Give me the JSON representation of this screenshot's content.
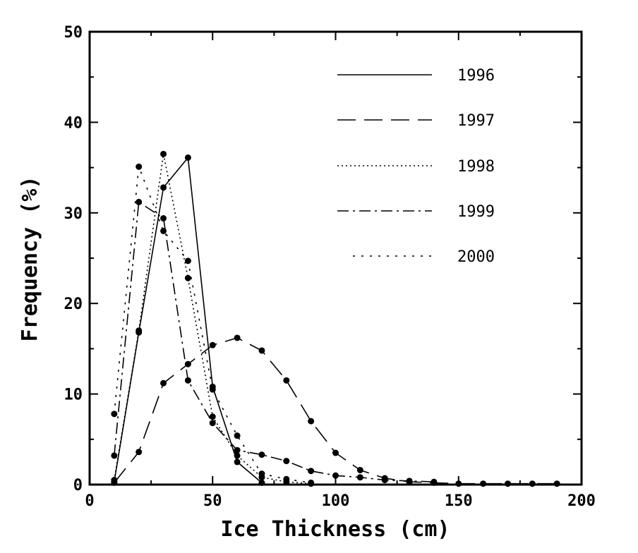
{
  "chart_data": {
    "type": "line",
    "xlabel": "Ice Thickness (cm)",
    "ylabel": "Frequency (%)",
    "xlim": [
      0,
      200
    ],
    "ylim": [
      0,
      50
    ],
    "xticks": [
      0,
      50,
      100,
      150,
      200
    ],
    "yticks": [
      0,
      10,
      20,
      30,
      40,
      50
    ],
    "x_tick_labels": [
      "0",
      "50",
      "100",
      "150",
      "200"
    ],
    "y_tick_labels": [
      "0",
      "10",
      "20",
      "30",
      "40",
      "50"
    ],
    "grid": false,
    "legend_position": "top-right",
    "series": [
      {
        "name": "1996",
        "dash": "solid",
        "points": [
          [
            10,
            0.3
          ],
          [
            20,
            16.8
          ],
          [
            30,
            32.8
          ],
          [
            40,
            36.1
          ],
          [
            50,
            10.8
          ],
          [
            60,
            2.5
          ],
          [
            70,
            0.2
          ]
        ]
      },
      {
        "name": "1997",
        "dash": "long-dash",
        "points": [
          [
            10,
            0.2
          ],
          [
            20,
            3.6
          ],
          [
            30,
            11.2
          ],
          [
            40,
            13.3
          ],
          [
            50,
            15.4
          ],
          [
            60,
            16.2
          ],
          [
            70,
            14.8
          ],
          [
            80,
            11.5
          ],
          [
            90,
            7.0
          ],
          [
            100,
            3.5
          ],
          [
            110,
            1.6
          ],
          [
            120,
            0.7
          ],
          [
            130,
            0.3
          ],
          [
            140,
            0.2
          ],
          [
            150,
            0.1
          ],
          [
            160,
            0.1
          ],
          [
            170,
            0.1
          ],
          [
            180,
            0.1
          ],
          [
            190,
            0.1
          ]
        ]
      },
      {
        "name": "1998",
        "dash": "dotted",
        "points": [
          [
            10,
            0.5
          ],
          [
            20,
            17.0
          ],
          [
            30,
            36.5
          ],
          [
            40,
            22.8
          ],
          [
            50,
            7.5
          ],
          [
            60,
            3.2
          ],
          [
            70,
            0.8
          ],
          [
            80,
            0.3
          ],
          [
            90,
            0.1
          ]
        ]
      },
      {
        "name": "1999",
        "dash": "dash-dot",
        "points": [
          [
            10,
            3.2
          ],
          [
            20,
            31.2
          ],
          [
            30,
            29.4
          ],
          [
            40,
            11.5
          ],
          [
            50,
            6.8
          ],
          [
            60,
            3.8
          ],
          [
            70,
            3.3
          ],
          [
            80,
            2.6
          ],
          [
            90,
            1.5
          ],
          [
            100,
            1.0
          ],
          [
            110,
            0.8
          ],
          [
            120,
            0.5
          ],
          [
            130,
            0.4
          ],
          [
            140,
            0.3
          ]
        ]
      },
      {
        "name": "2000",
        "dash": "sparse-dot",
        "points": [
          [
            10,
            7.8
          ],
          [
            20,
            35.1
          ],
          [
            30,
            28.0
          ],
          [
            40,
            24.7
          ],
          [
            50,
            10.5
          ],
          [
            60,
            5.4
          ],
          [
            70,
            1.2
          ],
          [
            80,
            0.6
          ],
          [
            90,
            0.2
          ]
        ]
      }
    ]
  }
}
